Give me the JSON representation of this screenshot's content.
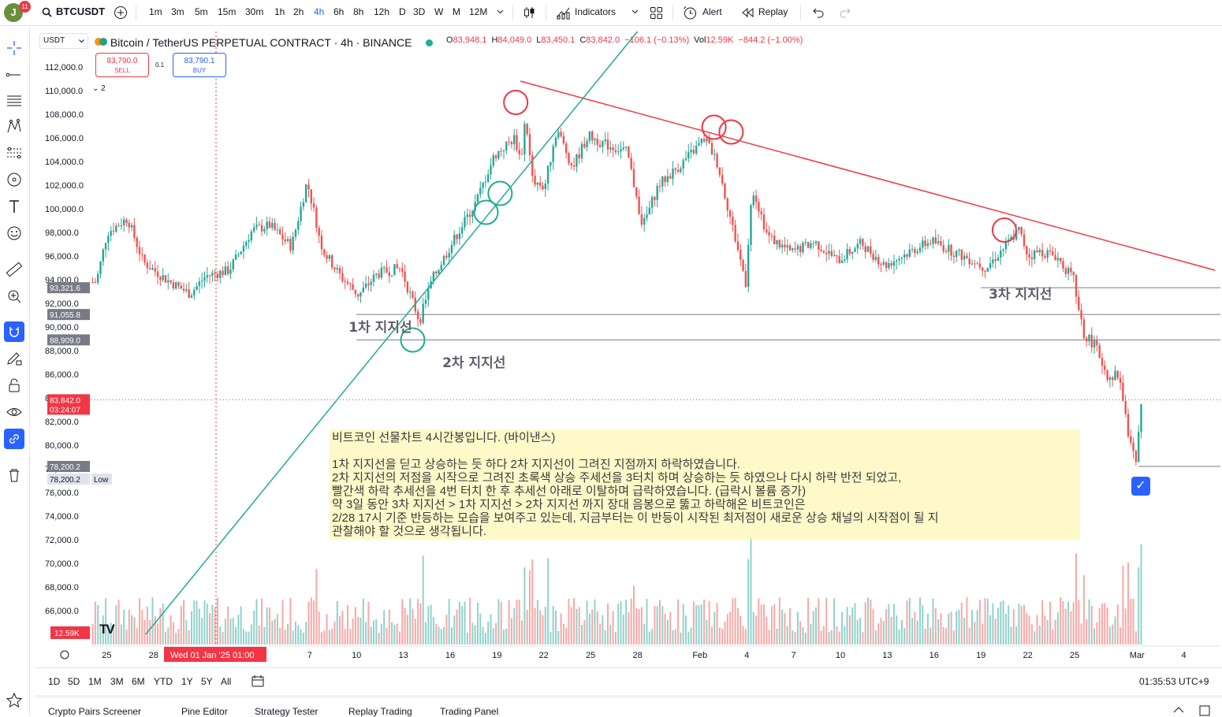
{
  "topbar": {
    "avatar_letter": "J",
    "notif_count": "11",
    "symbol": "BTCUSDT",
    "intervals": [
      "1m",
      "3m",
      "5m",
      "15m",
      "30m",
      "1h",
      "2h",
      "4h",
      "6h",
      "8h",
      "12h",
      "D",
      "3D",
      "W",
      "M",
      "12M"
    ],
    "active_interval": "4h",
    "indicators_label": "Indicators",
    "alert_label": "Alert",
    "replay_label": "Replay"
  },
  "legend": {
    "title": "Bitcoin / TetherUS PERPETUAL CONTRACT · 4h · BINANCE",
    "o_label": "O",
    "o": "83,948.1",
    "h_label": "H",
    "h": "84,049.0",
    "l_label": "L",
    "l": "83,450.1",
    "c_label": "C",
    "c": "83,842.0",
    "change": "−106.1 (−0.13%)",
    "vol_label": "Vol",
    "vol": "12.59K",
    "vol_change": "−844.2 (−1.00%)",
    "currency": "USDT",
    "sell_price": "83,790.0",
    "sell_label": "SELL",
    "buy_price": "83,790.1",
    "buy_label": "BUY",
    "spread": "0.1",
    "lines_count": "2"
  },
  "colors": {
    "up": "#26a69a",
    "down": "#ef5350",
    "trend_down": "#f23645",
    "trend_up": "#22ab94",
    "note_bg": "#fff5b4"
  },
  "chart_data": {
    "type": "candlestick",
    "title": "Bitcoin / TetherUS PERPETUAL CONTRACT · 4h · BINANCE",
    "ylim": [
      64000,
      114000
    ],
    "y_ticks": [
      "112,000.0",
      "110,000.0",
      "108,000.0",
      "106,000.0",
      "104,000.0",
      "102,000.0",
      "100,000.0",
      "98,000.0",
      "96,000.0",
      "94,000.0",
      "92,000.0",
      "90,000.0",
      "88,000.0",
      "86,000.0",
      "84,000.0",
      "82,000.0",
      "80,000.0",
      "78,000.0",
      "76,000.0",
      "74,000.0",
      "72,000.0",
      "70,000.0",
      "68,000.0",
      "66,000.0"
    ],
    "y_tick_values": [
      112000,
      110000,
      108000,
      106000,
      104000,
      102000,
      100000,
      98000,
      96000,
      94000,
      92000,
      90000,
      88000,
      86000,
      84000,
      82000,
      80000,
      78000,
      76000,
      74000,
      72000,
      70000,
      68000,
      66000
    ],
    "x_ticks": [
      "25",
      "28",
      "7",
      "10",
      "13",
      "16",
      "19",
      "22",
      "25",
      "28",
      "Feb",
      "4",
      "7",
      "10",
      "13",
      "16",
      "19",
      "22",
      "25",
      "Mar",
      "4"
    ],
    "x_tick_days": [
      -7,
      -4,
      6,
      9,
      12,
      15,
      18,
      21,
      24,
      27,
      31,
      34,
      37,
      40,
      43,
      46,
      49,
      52,
      55,
      59,
      62
    ],
    "crosshair_label": "Wed 01 Jan '25   01:00",
    "crosshair_day": 0,
    "series_anchors_day_price": [
      [
        -7.5,
        93800
      ],
      [
        -6.8,
        98000
      ],
      [
        -5.5,
        99200
      ],
      [
        -4.5,
        95500
      ],
      [
        -3,
        94000
      ],
      [
        -1.5,
        92800
      ],
      [
        -0.5,
        94300
      ],
      [
        1,
        94800
      ],
      [
        2.5,
        98200
      ],
      [
        3.6,
        98600
      ],
      [
        5,
        96800
      ],
      [
        6,
        102300
      ],
      [
        7,
        96500
      ],
      [
        8.2,
        94200
      ],
      [
        9.3,
        92700
      ],
      [
        10.5,
        94500
      ],
      [
        12,
        95000
      ],
      [
        13.2,
        90500
      ],
      [
        14,
        94000
      ],
      [
        15.5,
        97600
      ],
      [
        16.8,
        100500
      ],
      [
        18,
        104500
      ],
      [
        19.3,
        106000
      ],
      [
        19.7,
        104000
      ],
      [
        20,
        108000
      ],
      [
        20.4,
        102500
      ],
      [
        21.2,
        101800
      ],
      [
        22,
        106800
      ],
      [
        23,
        103500
      ],
      [
        24,
        106200
      ],
      [
        25,
        105500
      ],
      [
        26.5,
        104800
      ],
      [
        27.5,
        98500
      ],
      [
        28.5,
        102000
      ],
      [
        30,
        103800
      ],
      [
        31.5,
        106000
      ],
      [
        32.3,
        103800
      ],
      [
        33.3,
        98200
      ],
      [
        34.1,
        93800
      ],
      [
        34.5,
        102000
      ],
      [
        35.5,
        97700
      ],
      [
        37,
        96300
      ],
      [
        38.5,
        97200
      ],
      [
        40,
        95600
      ],
      [
        41.5,
        97100
      ],
      [
        43,
        95200
      ],
      [
        44.5,
        96300
      ],
      [
        46,
        97300
      ],
      [
        47.5,
        96300
      ],
      [
        48.5,
        95700
      ],
      [
        49.5,
        95000
      ],
      [
        50.5,
        96500
      ],
      [
        51.6,
        98200
      ],
      [
        52.2,
        96000
      ],
      [
        53,
        96400
      ],
      [
        54,
        96000
      ],
      [
        55.1,
        94000
      ],
      [
        55.7,
        89500
      ],
      [
        56.5,
        88400
      ],
      [
        57.3,
        85800
      ],
      [
        58,
        86000
      ],
      [
        58.7,
        80200
      ],
      [
        59.1,
        78400
      ],
      [
        59.4,
        83800
      ]
    ],
    "last_price": "83,842.0",
    "last_countdown": "03:24:07",
    "price_label_values": [
      93321.6,
      91055.8,
      88909.0,
      83842.0,
      78200.2,
      78200.2
    ],
    "price_labels": [
      "93,321.6",
      "91,055.8",
      "88,909.0",
      "83,842.0",
      "78,200.2",
      "78,200.2"
    ],
    "low_label": "Low",
    "volume_label": "12.59K",
    "horizontal_lines": [
      93321.6,
      91055.8,
      88909.0,
      78200.2
    ],
    "trendline_down": [
      [
        19.5,
        110800
      ],
      [
        64,
        94800
      ]
    ],
    "trendline_up": [
      [
        -4.5,
        64000
      ],
      [
        27,
        115000
      ]
    ],
    "circles_day_price": [
      [
        19.2,
        109000
      ],
      [
        31.9,
        106900
      ],
      [
        33,
        106500
      ],
      [
        50.5,
        98200
      ],
      [
        17.3,
        99700
      ],
      [
        18.2,
        101300
      ],
      [
        12.6,
        88900
      ]
    ],
    "annotations": [
      "1차 지지선",
      "2차 지지선",
      "3차 지지선"
    ],
    "annotation_anchors": [
      [
        8.5,
        89600
      ],
      [
        14.5,
        86600
      ],
      [
        49.5,
        92400
      ]
    ]
  },
  "note": {
    "text": "비트코인 선물차트 4시간봉입니다. (바이낸스)\n\n1차 지지선을 딛고 상승하는 듯 하다 2차 지지선이 그려진 지점까지 하락하였습니다.\n2차 지지선의 저점을 시작으로 그려진 초록색 상승 주세선을 3터치 하며 상승하는 듯 하였으나 다시 하락 반전 되었고,\n빨간색 하락 추세선을 4번 터치 한 후 추세선 아래로 이탈하며 급락하였습니다. (급락시 볼륨 증가)\n약 3일 동안 3차 지지선 > 1차 지지선 > 2차 지지선 까지 장대 음봉으로 뚫고 하락해온 비트코인은\n2/28 17시 기준 반등하는 모습을 보여주고 있는데, 지금부터는 이 반등이 시작된 최저점이 새로운 상승 채널의 시작점이 될 지\n관찰해야 할 것으로 생각됩니다."
  },
  "bottombar": {
    "ranges": [
      "1D",
      "5D",
      "1M",
      "3M",
      "6M",
      "YTD",
      "1Y",
      "5Y",
      "All"
    ],
    "clock": "01:35:53 UTC+9"
  },
  "footer": {
    "tabs": [
      "Crypto Pairs Screener",
      "Pine Editor",
      "Strategy Tester",
      "Replay Trading",
      "Trading Panel"
    ]
  }
}
